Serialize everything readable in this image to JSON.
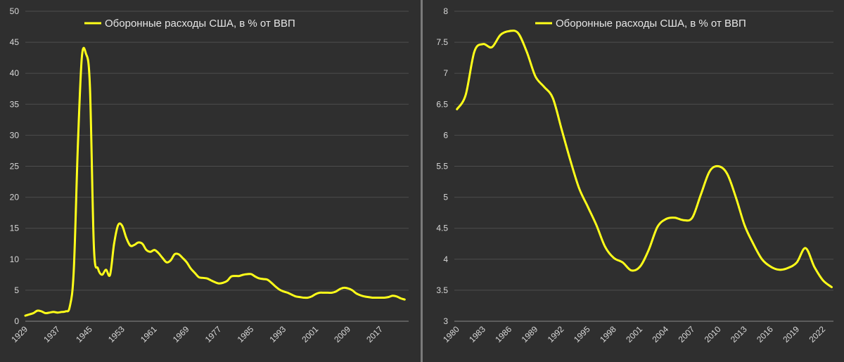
{
  "colors": {
    "background": "#2f2f2f",
    "series": "#ffff1a",
    "grid": "#4d4d4d",
    "text": "#d9d9d9"
  },
  "chart_data": [
    {
      "type": "line",
      "legend": "top-center",
      "grid": true,
      "ylim": [
        0,
        50
      ],
      "yticks": [
        0,
        5,
        10,
        15,
        20,
        25,
        30,
        35,
        40,
        45,
        50
      ],
      "xlim": [
        1929,
        2024
      ],
      "xticks": [
        1929,
        1937,
        1945,
        1953,
        1961,
        1969,
        1977,
        1985,
        1993,
        2001,
        2009,
        2017
      ],
      "series": [
        {
          "name": "Оборонные расходы США, в % от ВВП",
          "x": [
            1929,
            1930,
            1931,
            1932,
            1933,
            1934,
            1935,
            1936,
            1937,
            1938,
            1939,
            1940,
            1941,
            1942,
            1943,
            1944,
            1945,
            1946,
            1947,
            1948,
            1949,
            1950,
            1951,
            1952,
            1953,
            1954,
            1955,
            1956,
            1957,
            1958,
            1959,
            1960,
            1961,
            1962,
            1963,
            1964,
            1965,
            1966,
            1967,
            1968,
            1969,
            1970,
            1971,
            1972,
            1973,
            1974,
            1975,
            1976,
            1977,
            1978,
            1979,
            1980,
            1981,
            1982,
            1983,
            1984,
            1985,
            1986,
            1987,
            1988,
            1989,
            1990,
            1991,
            1992,
            1993,
            1994,
            1995,
            1996,
            1997,
            1998,
            1999,
            2000,
            2001,
            2002,
            2003,
            2004,
            2005,
            2006,
            2007,
            2008,
            2009,
            2010,
            2011,
            2012,
            2013,
            2014,
            2015,
            2016,
            2017,
            2018,
            2019,
            2020,
            2021,
            2022,
            2023
          ],
          "values": [
            0.9,
            1.1,
            1.3,
            1.7,
            1.6,
            1.3,
            1.4,
            1.5,
            1.4,
            1.5,
            1.6,
            2.3,
            8.0,
            28.0,
            42.5,
            43.2,
            38.0,
            12.0,
            8.5,
            7.5,
            8.3,
            7.5,
            12.5,
            15.5,
            15.4,
            13.5,
            12.2,
            12.3,
            12.7,
            12.5,
            11.5,
            11.2,
            11.5,
            11.0,
            10.2,
            9.5,
            9.8,
            10.8,
            10.8,
            10.2,
            9.5,
            8.5,
            7.8,
            7.1,
            7.0,
            6.9,
            6.6,
            6.3,
            6.1,
            6.2,
            6.5,
            7.2,
            7.3,
            7.3,
            7.5,
            7.6,
            7.6,
            7.2,
            6.9,
            6.8,
            6.7,
            6.2,
            5.6,
            5.1,
            4.8,
            4.6,
            4.3,
            4.0,
            3.9,
            3.8,
            3.8,
            4.0,
            4.4,
            4.6,
            4.6,
            4.6,
            4.6,
            4.8,
            5.2,
            5.4,
            5.3,
            5.0,
            4.5,
            4.2,
            4.0,
            3.9,
            3.8,
            3.8,
            3.8,
            3.8,
            3.9,
            4.1,
            4.0,
            3.7,
            3.5
          ]
        }
      ]
    },
    {
      "type": "line",
      "legend": "top-center",
      "grid": true,
      "ylim": [
        3,
        8
      ],
      "yticks": [
        3,
        3.5,
        4,
        4.5,
        5,
        5.5,
        6,
        6.5,
        7,
        7.5,
        8
      ],
      "xlim": [
        1979.7,
        2023.2
      ],
      "xticks": [
        1980,
        1983,
        1986,
        1989,
        1992,
        1995,
        1998,
        2001,
        2004,
        2007,
        2010,
        2013,
        2016,
        2019,
        2022
      ],
      "series": [
        {
          "name": "Оборонные расходы США, в % от ВВП",
          "x": [
            1980,
            1981,
            1982,
            1983,
            1984,
            1985,
            1986,
            1987,
            1988,
            1989,
            1990,
            1991,
            1992,
            1993,
            1994,
            1995,
            1996,
            1997,
            1998,
            1999,
            2000,
            2001,
            2002,
            2003,
            2004,
            2005,
            2006,
            2007,
            2008,
            2009,
            2010,
            2011,
            2012,
            2013,
            2014,
            2015,
            2016,
            2017,
            2018,
            2019,
            2020,
            2021,
            2022,
            2023
          ],
          "values": [
            6.42,
            6.65,
            7.35,
            7.47,
            7.42,
            7.62,
            7.68,
            7.65,
            7.35,
            6.95,
            6.78,
            6.6,
            6.1,
            5.6,
            5.15,
            4.85,
            4.55,
            4.2,
            4.02,
            3.95,
            3.82,
            3.88,
            4.15,
            4.52,
            4.65,
            4.67,
            4.63,
            4.67,
            5.05,
            5.42,
            5.5,
            5.38,
            5.0,
            4.55,
            4.25,
            4.0,
            3.88,
            3.83,
            3.86,
            3.95,
            4.18,
            3.88,
            3.66,
            3.55
          ]
        }
      ]
    }
  ]
}
